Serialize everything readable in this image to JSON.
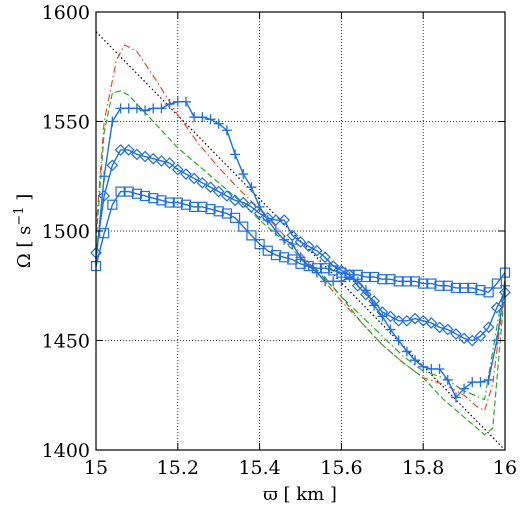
{
  "chart_data": {
    "type": "line",
    "xlabel": "ϖ [ km ]",
    "ylabel_main": "Ω [ s",
    "ylabel_exp": "−1",
    "ylabel_tail": " ]",
    "xlim": [
      15,
      16
    ],
    "ylim": [
      1400,
      1600
    ],
    "xticks": [
      15,
      15.2,
      15.4,
      15.6,
      15.8,
      16
    ],
    "xtick_labels": [
      "15",
      "15.2",
      "15.4",
      "15.6",
      "15.8",
      "16"
    ],
    "yticks": [
      1400,
      1450,
      1500,
      1550,
      1600
    ],
    "ytick_labels": [
      "1400",
      "1450",
      "1500",
      "1550",
      "1600"
    ],
    "grid": true,
    "series": [
      {
        "style": "dotted",
        "color": "#000000",
        "marker": "none",
        "x": [
          15.0,
          16.0
        ],
        "y": [
          1591,
          1400
        ]
      },
      {
        "style": "dashdot",
        "color": "#e8502a",
        "marker": "none",
        "x": [
          15.0,
          15.02,
          15.05,
          15.07,
          15.1,
          15.15,
          15.2,
          15.25,
          15.3,
          15.35,
          15.4,
          15.45,
          15.5,
          15.55,
          15.6,
          15.65,
          15.7,
          15.75,
          15.8,
          15.85,
          15.9,
          15.93,
          15.95,
          15.97,
          16.0
        ],
        "y": [
          1500,
          1550,
          1578,
          1585,
          1582,
          1568,
          1553,
          1540,
          1529,
          1519,
          1510,
          1500,
          1490,
          1479,
          1468,
          1458,
          1448,
          1440,
          1433,
          1430,
          1425,
          1420,
          1418,
          1430,
          1475
        ]
      },
      {
        "style": "dashed",
        "color": "#2faa2a",
        "marker": "none",
        "x": [
          15.0,
          15.02,
          15.04,
          15.06,
          15.08,
          15.1,
          15.15,
          15.2,
          15.25,
          15.3,
          15.35,
          15.4,
          15.45,
          15.5,
          15.55,
          15.6,
          15.65,
          15.7,
          15.75,
          15.8,
          15.85,
          15.9,
          15.95,
          15.97,
          16.0
        ],
        "y": [
          1495,
          1545,
          1563,
          1564,
          1562,
          1558,
          1548,
          1538,
          1530,
          1522,
          1514,
          1505,
          1497,
          1488,
          1480,
          1470,
          1458,
          1448,
          1440,
          1433,
          1423,
          1415,
          1407,
          1410,
          1475
        ]
      },
      {
        "style": "dashdot",
        "color": "#2faa2a",
        "marker": "none",
        "x": [
          15.5,
          15.55,
          15.6,
          15.65,
          15.7,
          15.75,
          15.8,
          15.85,
          15.9,
          15.95,
          16.0
        ],
        "y": [
          1487,
          1481,
          1470,
          1461,
          1452,
          1443,
          1436,
          1433,
          1427,
          1423,
          1478
        ]
      },
      {
        "style": "solid",
        "color": "#1f6fe0",
        "marker": "plus",
        "x": [
          15.0,
          15.02,
          15.04,
          15.06,
          15.08,
          15.1,
          15.12,
          15.14,
          15.16,
          15.18,
          15.2,
          15.22,
          15.24,
          15.26,
          15.28,
          15.3,
          15.32,
          15.34,
          15.36,
          15.38,
          15.4,
          15.42,
          15.44,
          15.46,
          15.48,
          15.5,
          15.52,
          15.54,
          15.56,
          15.58,
          15.6,
          15.62,
          15.64,
          15.66,
          15.68,
          15.7,
          15.72,
          15.74,
          15.76,
          15.78,
          15.8,
          15.82,
          15.84,
          15.86,
          15.88,
          15.9,
          15.92,
          15.94,
          15.96,
          15.98,
          16.0
        ],
        "y": [
          1486,
          1525,
          1550,
          1556,
          1556,
          1556,
          1555,
          1556,
          1556,
          1558,
          1559,
          1559,
          1552,
          1552,
          1551,
          1549,
          1546,
          1535,
          1526,
          1520,
          1511,
          1505,
          1500,
          1496,
          1494,
          1488,
          1484,
          1481,
          1477,
          1477,
          1477,
          1479,
          1477,
          1473,
          1466,
          1461,
          1455,
          1450,
          1445,
          1441,
          1438,
          1437,
          1437,
          1432,
          1424,
          1428,
          1431,
          1431,
          1432,
          1450,
          1475
        ]
      },
      {
        "style": "solid",
        "color": "#1f6fe0",
        "marker": "diamond",
        "x": [
          15.0,
          15.02,
          15.04,
          15.06,
          15.08,
          15.1,
          15.12,
          15.14,
          15.16,
          15.18,
          15.2,
          15.22,
          15.24,
          15.26,
          15.28,
          15.3,
          15.32,
          15.34,
          15.36,
          15.38,
          15.4,
          15.42,
          15.44,
          15.46,
          15.48,
          15.5,
          15.52,
          15.54,
          15.56,
          15.58,
          15.6,
          15.62,
          15.64,
          15.66,
          15.68,
          15.7,
          15.72,
          15.74,
          15.76,
          15.78,
          15.8,
          15.82,
          15.84,
          15.86,
          15.88,
          15.9,
          15.92,
          15.94,
          15.96,
          15.98,
          16.0
        ],
        "y": [
          1490,
          1516,
          1530,
          1537,
          1537,
          1535,
          1534,
          1533,
          1532,
          1531,
          1528,
          1526,
          1524,
          1522,
          1520,
          1518,
          1516,
          1514,
          1513,
          1511,
          1508,
          1506,
          1505,
          1505,
          1498,
          1495,
          1493,
          1491,
          1488,
          1484,
          1482,
          1480,
          1475,
          1471,
          1468,
          1463,
          1461,
          1459,
          1459,
          1460,
          1459,
          1458,
          1456,
          1455,
          1453,
          1451,
          1450,
          1452,
          1456,
          1465,
          1472
        ]
      },
      {
        "style": "solid",
        "color": "#1f6fe0",
        "marker": "square",
        "x": [
          15.0,
          15.02,
          15.04,
          15.06,
          15.08,
          15.1,
          15.12,
          15.14,
          15.16,
          15.18,
          15.2,
          15.22,
          15.24,
          15.26,
          15.28,
          15.3,
          15.32,
          15.34,
          15.36,
          15.38,
          15.4,
          15.42,
          15.44,
          15.46,
          15.48,
          15.5,
          15.52,
          15.54,
          15.56,
          15.58,
          15.6,
          15.62,
          15.64,
          15.66,
          15.68,
          15.7,
          15.72,
          15.74,
          15.76,
          15.78,
          15.8,
          15.82,
          15.84,
          15.86,
          15.88,
          15.9,
          15.92,
          15.94,
          15.96,
          15.98,
          16.0
        ],
        "y": [
          1484,
          1499,
          1512,
          1518,
          1518,
          1517,
          1516,
          1515,
          1514,
          1513,
          1513,
          1512,
          1511,
          1511,
          1510,
          1509,
          1508,
          1506,
          1502,
          1498,
          1494,
          1491,
          1489,
          1488,
          1487,
          1485,
          1484,
          1483,
          1483,
          1482,
          1481,
          1480,
          1480,
          1479,
          1479,
          1478,
          1478,
          1477,
          1477,
          1477,
          1476,
          1476,
          1475,
          1475,
          1474,
          1474,
          1474,
          1473,
          1472,
          1476,
          1481
        ]
      }
    ]
  }
}
